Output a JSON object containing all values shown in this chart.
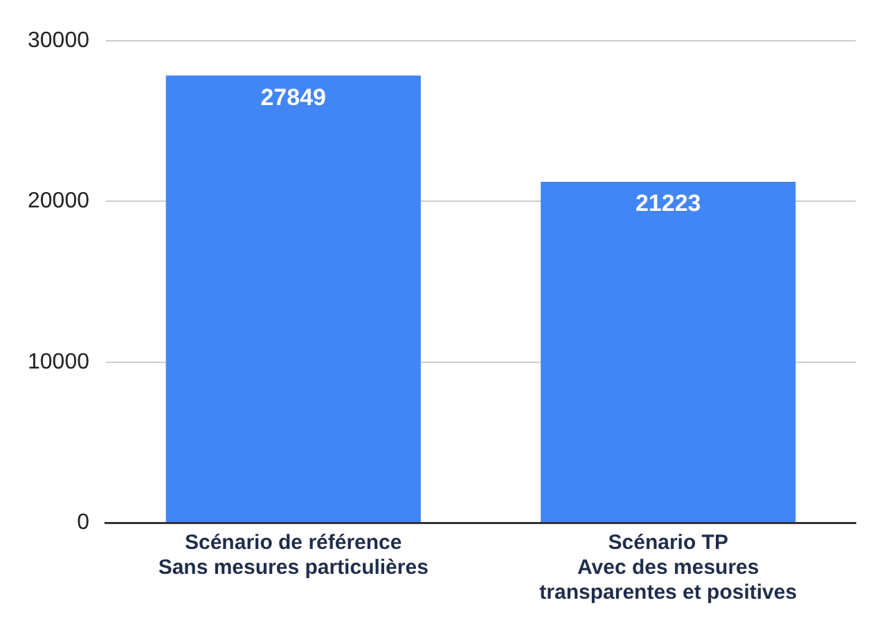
{
  "chart_data": {
    "type": "bar",
    "categories": [
      "Scénario de référence\nSans mesures particulières",
      "Scénario TP\nAvec des mesures\ntransparentes et positives"
    ],
    "values": [
      27849,
      21223
    ],
    "color": "#4285f4",
    "ylim": [
      0,
      30000
    ],
    "yticks": [
      0,
      10000,
      20000,
      30000
    ],
    "grid": "y",
    "data_labels": true,
    "legend": false
  }
}
